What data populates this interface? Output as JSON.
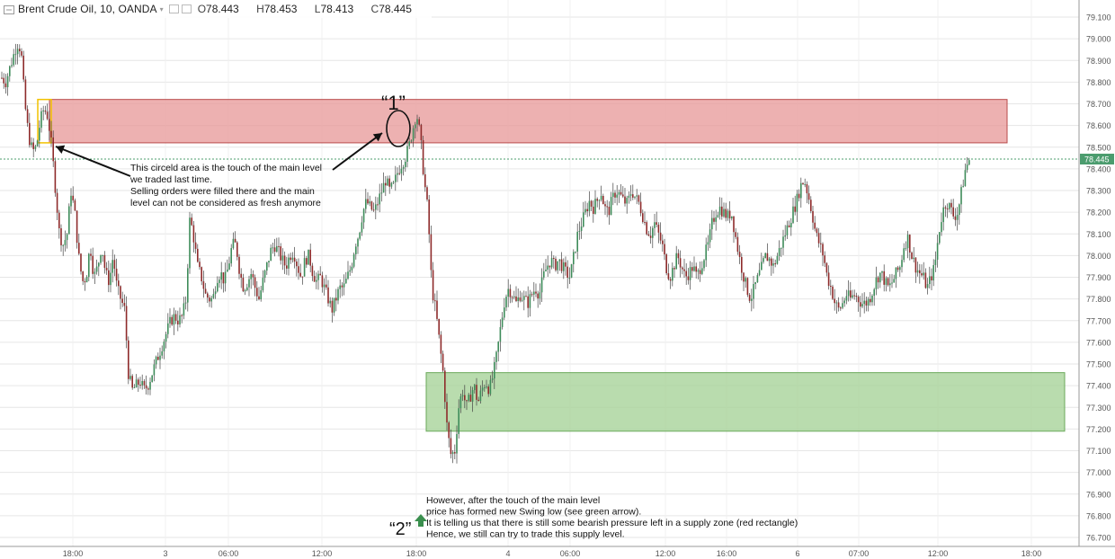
{
  "header": {
    "symbol": "Brent Crude Oil, 10, OANDA",
    "open_label": "O",
    "open": "78.443",
    "high_label": "H",
    "high": "78.453",
    "low_label": "L",
    "low": "78.413",
    "close_label": "C",
    "close": "78.445"
  },
  "colors": {
    "up": "#3e8c5a",
    "down": "#8e2b2b",
    "supply_zone": "#e89e9e",
    "demand_zone": "#a8d39a",
    "last_price_tag": "#4b9c6e",
    "axis_text": "#555555",
    "grid": "#e6e6e6"
  },
  "chart_data": {
    "type": "candlestick",
    "price_axis": {
      "min": 76.7,
      "max": 79.1,
      "step": 0.1,
      "ticks": [
        "79.100",
        "79.000",
        "78.900",
        "78.800",
        "78.700",
        "78.600",
        "78.500",
        "78.400",
        "78.300",
        "78.200",
        "78.100",
        "78.000",
        "77.900",
        "77.800",
        "77.700",
        "77.600",
        "77.500",
        "77.400",
        "77.300",
        "77.200",
        "77.100",
        "77.000",
        "76.900",
        "76.800",
        "76.700"
      ]
    },
    "time_axis": {
      "ticks": [
        "18:00",
        "3",
        "06:00",
        "12:00",
        "18:00",
        "4",
        "06:00",
        "12:00",
        "16:00",
        "6",
        "07:00",
        "12:00",
        "18:00"
      ]
    },
    "last_price": "78.445",
    "close_path": [
      [
        0,
        78.82
      ],
      [
        2,
        78.8
      ],
      [
        4,
        78.86
      ],
      [
        6,
        78.92
      ],
      [
        8,
        78.98
      ],
      [
        10,
        78.95
      ],
      [
        12,
        78.7
      ],
      [
        14,
        78.55
      ],
      [
        16,
        78.48
      ],
      [
        18,
        78.5
      ],
      [
        20,
        78.62
      ],
      [
        22,
        78.68
      ],
      [
        24,
        78.64
      ],
      [
        26,
        78.5
      ],
      [
        28,
        78.3
      ],
      [
        30,
        78.1
      ],
      [
        32,
        78.05
      ],
      [
        34,
        78.1
      ],
      [
        36,
        78.3
      ],
      [
        38,
        78.2
      ],
      [
        40,
        78.0
      ],
      [
        42,
        77.88
      ],
      [
        44,
        77.9
      ],
      [
        46,
        78.05
      ],
      [
        48,
        77.9
      ],
      [
        50,
        77.95
      ],
      [
        52,
        78.05
      ],
      [
        54,
        77.92
      ],
      [
        56,
        77.88
      ],
      [
        58,
        78.0
      ],
      [
        60,
        77.85
      ],
      [
        62,
        77.8
      ],
      [
        64,
        77.75
      ],
      [
        66,
        77.45
      ],
      [
        68,
        77.38
      ],
      [
        70,
        77.4
      ],
      [
        72,
        77.42
      ],
      [
        74,
        77.38
      ],
      [
        76,
        77.4
      ],
      [
        78,
        77.45
      ],
      [
        80,
        77.5
      ],
      [
        82,
        77.55
      ],
      [
        84,
        77.6
      ],
      [
        86,
        77.65
      ],
      [
        88,
        77.7
      ],
      [
        90,
        77.72
      ],
      [
        92,
        77.7
      ],
      [
        94,
        77.72
      ],
      [
        96,
        77.8
      ],
      [
        98,
        78.18
      ],
      [
        100,
        78.08
      ],
      [
        102,
        77.95
      ],
      [
        104,
        77.9
      ],
      [
        106,
        77.82
      ],
      [
        108,
        77.8
      ],
      [
        110,
        77.8
      ],
      [
        112,
        77.9
      ],
      [
        114,
        77.92
      ],
      [
        116,
        77.88
      ],
      [
        118,
        77.95
      ],
      [
        120,
        78.05
      ],
      [
        122,
        78.05
      ],
      [
        124,
        77.92
      ],
      [
        126,
        77.85
      ],
      [
        128,
        77.88
      ],
      [
        130,
        77.92
      ],
      [
        132,
        77.85
      ],
      [
        134,
        77.8
      ],
      [
        136,
        77.88
      ],
      [
        138,
        77.95
      ],
      [
        140,
        78.02
      ],
      [
        142,
        78.05
      ],
      [
        144,
        78.02
      ],
      [
        146,
        77.98
      ],
      [
        148,
        77.95
      ],
      [
        150,
        78.0
      ],
      [
        152,
        78.02
      ],
      [
        154,
        77.95
      ],
      [
        156,
        77.9
      ],
      [
        158,
        77.98
      ],
      [
        160,
        78.0
      ],
      [
        162,
        77.92
      ],
      [
        164,
        77.88
      ],
      [
        166,
        77.9
      ],
      [
        168,
        77.85
      ],
      [
        170,
        77.8
      ],
      [
        172,
        77.75
      ],
      [
        174,
        77.8
      ],
      [
        176,
        77.85
      ],
      [
        178,
        77.85
      ],
      [
        180,
        77.9
      ],
      [
        182,
        77.95
      ],
      [
        184,
        78.05
      ],
      [
        186,
        78.1
      ],
      [
        188,
        78.2
      ],
      [
        190,
        78.25
      ],
      [
        192,
        78.22
      ],
      [
        194,
        78.2
      ],
      [
        196,
        78.25
      ],
      [
        198,
        78.3
      ],
      [
        200,
        78.35
      ],
      [
        202,
        78.3
      ],
      [
        204,
        78.32
      ],
      [
        206,
        78.38
      ],
      [
        208,
        78.42
      ],
      [
        210,
        78.45
      ],
      [
        212,
        78.5
      ],
      [
        214,
        78.58
      ],
      [
        216,
        78.66
      ],
      [
        218,
        78.55
      ],
      [
        220,
        78.35
      ],
      [
        222,
        78.2
      ],
      [
        224,
        77.85
      ],
      [
        226,
        77.75
      ],
      [
        228,
        77.6
      ],
      [
        230,
        77.45
      ],
      [
        232,
        77.2
      ],
      [
        234,
        77.08
      ],
      [
        236,
        77.1
      ],
      [
        238,
        77.3
      ],
      [
        240,
        77.38
      ],
      [
        242,
        77.3
      ],
      [
        244,
        77.35
      ],
      [
        246,
        77.4
      ],
      [
        248,
        77.32
      ],
      [
        250,
        77.38
      ],
      [
        252,
        77.42
      ],
      [
        254,
        77.38
      ],
      [
        256,
        77.45
      ],
      [
        258,
        77.55
      ],
      [
        260,
        77.68
      ],
      [
        262,
        77.8
      ],
      [
        264,
        77.85
      ],
      [
        266,
        77.82
      ],
      [
        268,
        77.78
      ],
      [
        270,
        77.82
      ],
      [
        272,
        77.8
      ],
      [
        274,
        77.78
      ],
      [
        276,
        77.82
      ],
      [
        278,
        77.85
      ],
      [
        280,
        77.82
      ],
      [
        282,
        77.9
      ],
      [
        284,
        77.95
      ],
      [
        286,
        77.98
      ],
      [
        288,
        77.95
      ],
      [
        290,
        77.98
      ],
      [
        292,
        77.95
      ],
      [
        294,
        77.92
      ],
      [
        296,
        77.9
      ],
      [
        298,
        78.0
      ],
      [
        300,
        78.1
      ],
      [
        302,
        78.15
      ],
      [
        304,
        78.2
      ],
      [
        306,
        78.25
      ],
      [
        308,
        78.22
      ],
      [
        310,
        78.25
      ],
      [
        312,
        78.3
      ],
      [
        314,
        78.22
      ],
      [
        316,
        78.2
      ],
      [
        318,
        78.26
      ],
      [
        320,
        78.3
      ],
      [
        322,
        78.28
      ],
      [
        324,
        78.25
      ],
      [
        326,
        78.24
      ],
      [
        328,
        78.3
      ],
      [
        330,
        78.27
      ],
      [
        332,
        78.24
      ],
      [
        334,
        78.18
      ],
      [
        336,
        78.12
      ],
      [
        338,
        78.1
      ],
      [
        340,
        78.15
      ],
      [
        342,
        78.1
      ],
      [
        344,
        78.05
      ],
      [
        346,
        77.95
      ],
      [
        348,
        77.9
      ],
      [
        350,
        77.95
      ],
      [
        352,
        78.0
      ],
      [
        354,
        77.95
      ],
      [
        356,
        77.9
      ],
      [
        358,
        77.92
      ],
      [
        360,
        77.95
      ],
      [
        362,
        77.9
      ],
      [
        364,
        77.95
      ],
      [
        366,
        78.0
      ],
      [
        368,
        78.05
      ],
      [
        370,
        78.15
      ],
      [
        372,
        78.2
      ],
      [
        374,
        78.22
      ],
      [
        376,
        78.2
      ],
      [
        378,
        78.18
      ],
      [
        380,
        78.2
      ],
      [
        382,
        78.1
      ],
      [
        384,
        78.0
      ],
      [
        386,
        77.92
      ],
      [
        388,
        77.85
      ],
      [
        390,
        77.8
      ],
      [
        392,
        77.85
      ],
      [
        394,
        77.9
      ],
      [
        396,
        77.95
      ],
      [
        398,
        78.0
      ],
      [
        400,
        77.98
      ],
      [
        402,
        77.95
      ],
      [
        404,
        78.0
      ],
      [
        406,
        78.05
      ],
      [
        408,
        78.1
      ],
      [
        410,
        78.15
      ],
      [
        412,
        78.2
      ],
      [
        414,
        78.25
      ],
      [
        416,
        78.32
      ],
      [
        418,
        78.35
      ],
      [
        420,
        78.28
      ],
      [
        422,
        78.2
      ],
      [
        424,
        78.1
      ],
      [
        426,
        78.05
      ],
      [
        428,
        78.0
      ],
      [
        430,
        77.9
      ],
      [
        432,
        77.85
      ],
      [
        434,
        77.78
      ],
      [
        436,
        77.75
      ],
      [
        438,
        77.78
      ],
      [
        440,
        77.82
      ],
      [
        442,
        77.8
      ],
      [
        444,
        77.82
      ],
      [
        446,
        77.8
      ],
      [
        448,
        77.78
      ],
      [
        450,
        77.78
      ],
      [
        452,
        77.8
      ],
      [
        454,
        77.85
      ],
      [
        456,
        77.9
      ],
      [
        458,
        77.92
      ],
      [
        460,
        77.88
      ],
      [
        462,
        77.85
      ],
      [
        464,
        77.88
      ],
      [
        466,
        77.92
      ],
      [
        468,
        77.95
      ],
      [
        470,
        78.05
      ],
      [
        472,
        78.08
      ],
      [
        474,
        78.0
      ],
      [
        476,
        77.95
      ],
      [
        478,
        77.92
      ],
      [
        480,
        77.9
      ],
      [
        482,
        77.85
      ],
      [
        484,
        77.9
      ],
      [
        486,
        77.95
      ],
      [
        488,
        78.1
      ],
      [
        490,
        78.2
      ],
      [
        492,
        78.25
      ],
      [
        494,
        78.22
      ],
      [
        496,
        78.18
      ],
      [
        498,
        78.2
      ],
      [
        500,
        78.3
      ],
      [
        502,
        78.4
      ],
      [
        504,
        78.445
      ]
    ]
  },
  "zones": [
    {
      "name": "supply-zone",
      "top": 78.72,
      "bottom": 78.52
    },
    {
      "name": "demand-zone",
      "top": 77.46,
      "bottom": 77.19
    }
  ],
  "annotations": {
    "label1": "“1”",
    "label2": "“2”",
    "note1_lines": [
      "This circeld area is the touch of the main level",
      "we traded last time.",
      "Selling orders were filled there and the main",
      "level can not be considered as fresh anymore"
    ],
    "note2_lines": [
      "However, after the touch of the main level",
      "price has formed new Swing low (see green arrow).",
      "It is telling us that there is still some bearish pressure left in a supply zone (red rectangle)",
      "Hence, we still can try to trade this supply level."
    ]
  }
}
